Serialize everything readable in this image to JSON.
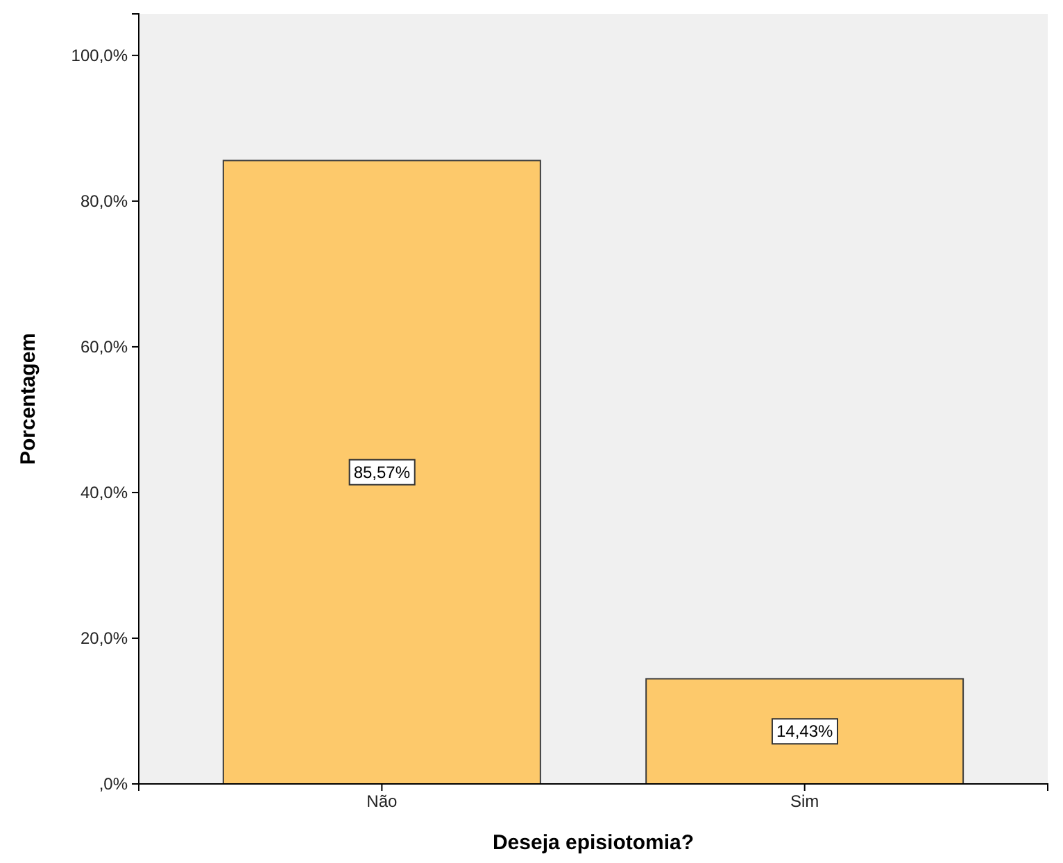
{
  "chart_data": {
    "type": "bar",
    "xlabel": "Deseja episiotomia?",
    "ylabel": "Porcentagem",
    "categories": [
      "Não",
      "Sim"
    ],
    "values": [
      85.57,
      14.43
    ],
    "value_labels": [
      "85,57%",
      "14,43%"
    ],
    "color": "#fdc96b",
    "ylim": [
      0,
      105.7
    ],
    "yticks": [
      {
        "value": 0,
        "label": ",0%"
      },
      {
        "value": 20,
        "label": "20,0%"
      },
      {
        "value": 40,
        "label": "40,0%"
      },
      {
        "value": 60,
        "label": "60,0%"
      },
      {
        "value": 80,
        "label": "80,0%"
      },
      {
        "value": 100,
        "label": "100,0%"
      }
    ],
    "grid": false
  }
}
